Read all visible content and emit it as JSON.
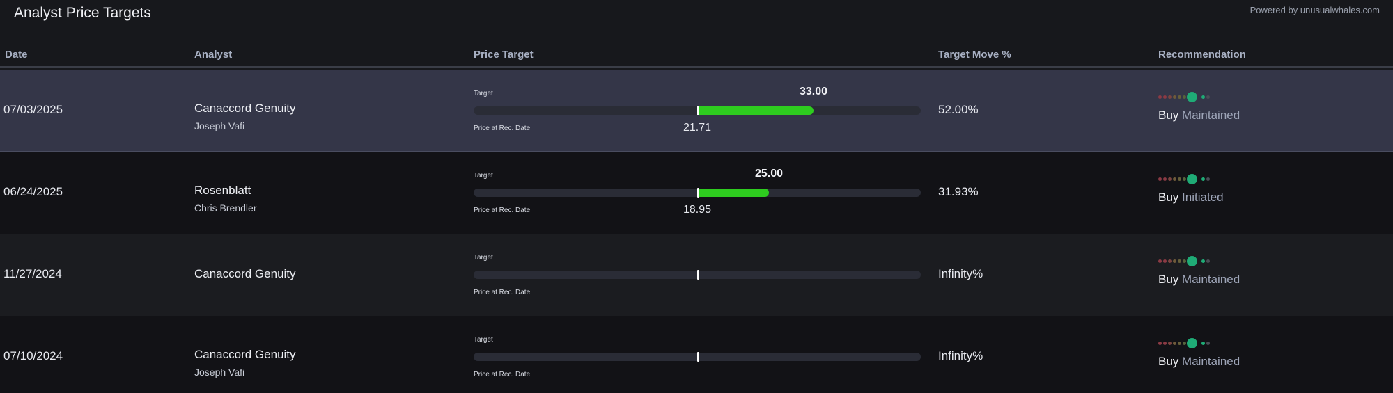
{
  "page": {
    "title": "Analyst Price Targets",
    "powered_by": "Powered by unusualwhales.com"
  },
  "columns": {
    "date": "Date",
    "analyst": "Analyst",
    "price_target": "Price Target",
    "target_move": "Target Move %",
    "recommendation": "Recommendation"
  },
  "labels": {
    "target": "Target",
    "price_at_rec": "Price at Rec. Date"
  },
  "colors": {
    "fill_green": "#2ecc1f",
    "rating_active": "#1fab76",
    "rating_sell": "#8b3a44",
    "rating_neutral": "#6e5a3a",
    "rating_buy": "#3f6b4a"
  },
  "rows": [
    {
      "date": "07/03/2025",
      "firm": "Canaccord Genuity",
      "analyst": "Joseph Vafi",
      "target": "33.00",
      "price_at_rec": "21.71",
      "target_fraction_of_bar": 0.76,
      "rec_fraction_of_bar": 0.5,
      "move": "52.00%",
      "action": "Buy",
      "status": "Maintained",
      "rating_level": 7,
      "rating_levels_total": 9
    },
    {
      "date": "06/24/2025",
      "firm": "Rosenblatt",
      "analyst": "Chris Brendler",
      "target": "25.00",
      "price_at_rec": "18.95",
      "target_fraction_of_bar": 0.66,
      "rec_fraction_of_bar": 0.5,
      "move": "31.93%",
      "action": "Buy",
      "status": "Initiated",
      "rating_level": 7,
      "rating_levels_total": 9
    },
    {
      "date": "11/27/2024",
      "firm": "Canaccord Genuity",
      "analyst": "",
      "target": "",
      "price_at_rec": "",
      "target_fraction_of_bar": 0.5,
      "rec_fraction_of_bar": 0.5,
      "move": "Infinity%",
      "action": "Buy",
      "status": "Maintained",
      "rating_level": 7,
      "rating_levels_total": 9
    },
    {
      "date": "07/10/2024",
      "firm": "Canaccord Genuity",
      "analyst": "Joseph Vafi",
      "target": "",
      "price_at_rec": "",
      "target_fraction_of_bar": 0.5,
      "rec_fraction_of_bar": 0.5,
      "move": "Infinity%",
      "action": "Buy",
      "status": "Maintained",
      "rating_level": 7,
      "rating_levels_total": 9
    }
  ]
}
